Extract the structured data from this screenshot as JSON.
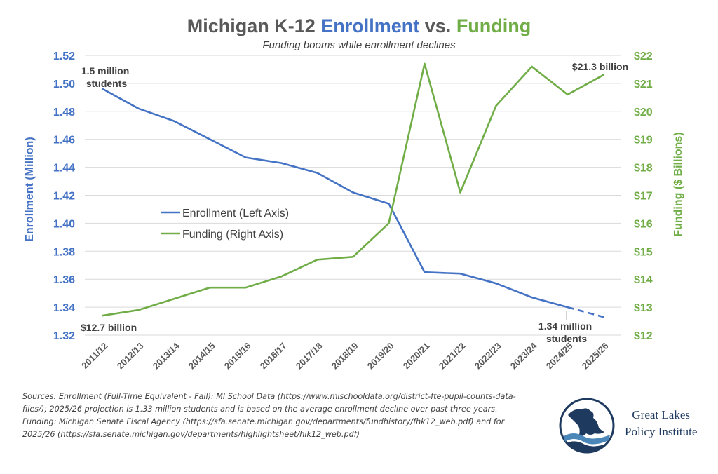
{
  "title": {
    "prefix": "Michigan K-12 ",
    "enrollment_word": "Enrollment",
    "middle": " vs. ",
    "funding_word": "Funding"
  },
  "subtitle": "Funding booms while enrollment declines",
  "colors": {
    "enrollment": "#4472C4",
    "funding": "#70AD47",
    "text": "#595959",
    "annotation": "#404040",
    "grid": "#D9D9D9"
  },
  "chart_data": {
    "type": "line",
    "title": "Michigan K-12 Enrollment vs. Funding",
    "subtitle": "Funding booms while enrollment declines",
    "categories": [
      "2011/12",
      "2012/13",
      "2013/14",
      "2014/15",
      "2015/16",
      "2016/17",
      "2017/18",
      "2018/19",
      "2019/20",
      "2020/21",
      "2021/22",
      "2022/23",
      "2023/24",
      "2024/25",
      "2025/26"
    ],
    "series": [
      {
        "name": "Enrollment (Left Axis)",
        "axis": "left",
        "color": "#4472C4",
        "values": [
          1.496,
          1.482,
          1.473,
          1.46,
          1.447,
          1.443,
          1.436,
          1.422,
          1.414,
          1.365,
          1.364,
          1.357,
          1.347,
          1.34,
          1.333
        ],
        "projected_from_index": 13
      },
      {
        "name": "Funding (Right Axis)",
        "axis": "right",
        "color": "#70AD47",
        "values": [
          12.7,
          12.9,
          13.3,
          13.7,
          13.7,
          14.1,
          14.7,
          14.8,
          16.0,
          21.7,
          17.1,
          20.2,
          21.6,
          20.6,
          21.3
        ]
      }
    ],
    "left_axis": {
      "label": "Enrollment (Million)",
      "range": [
        1.32,
        1.52
      ],
      "ticks": [
        "1.32",
        "1.34",
        "1.36",
        "1.38",
        "1.40",
        "1.42",
        "1.44",
        "1.46",
        "1.48",
        "1.50",
        "1.52"
      ]
    },
    "right_axis": {
      "label": "Funding ($ Billions)",
      "range": [
        12,
        22
      ],
      "ticks": [
        "$12",
        "$13",
        "$14",
        "$15",
        "$16",
        "$17",
        "$18",
        "$19",
        "$20",
        "$21",
        "$22"
      ]
    },
    "grid": true,
    "legend_position": "center-left",
    "annotations": [
      {
        "text": [
          "1.5 million",
          "students"
        ],
        "series": 0,
        "index": 0,
        "position": "above"
      },
      {
        "text": [
          "$12.7 billion"
        ],
        "series": 1,
        "index": 0,
        "position": "below"
      },
      {
        "text": [
          "$21.3 billion"
        ],
        "series": 1,
        "index": 14,
        "position": "above"
      },
      {
        "text": [
          "1.34 million",
          "students"
        ],
        "series": 0,
        "index": 13,
        "position": "below",
        "leader_line": true
      }
    ]
  },
  "footer": {
    "sources_line": "Sources: Enrollment (Full-Time Equivalent - Fall): MI School Data (https://www.mischooldata.org/district-fte-pupil-counts-data-files/); 2025/26 projection is 1.33 million students and is based on the average enrollment decline over past three years.",
    "funding_line": "Funding: Michigan Senate Fiscal Agency (https://sfa.senate.michigan.gov/departments/fundhistory/fhk12_web.pdf) and for 2025/26 (https://sfa.senate.michigan.gov/departments/highlightsheet/hik12_web.pdf)"
  },
  "logo": {
    "line1": "Great Lakes",
    "line2": "Policy Institute",
    "icon": "great-lakes-map-icon"
  }
}
